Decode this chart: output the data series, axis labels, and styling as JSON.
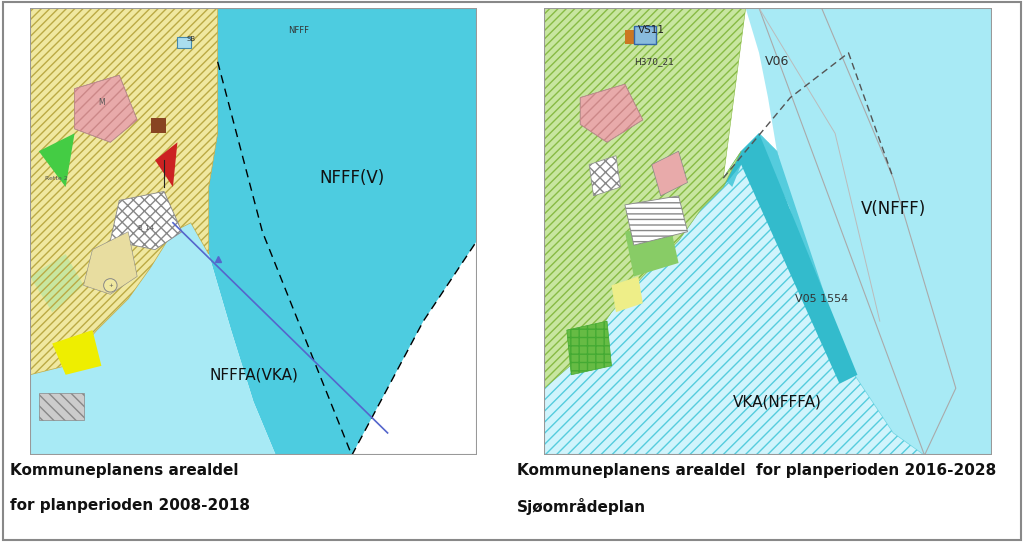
{
  "fig_width": 10.24,
  "fig_height": 5.42,
  "dpi": 100,
  "background_color": "#ffffff",
  "left_caption_line1": "Kommuneplanens arealdel",
  "left_caption_line2": "for planperioden 2008-2018",
  "right_caption_line1": "Kommuneplanens arealdel  for planperioden 2016-2028",
  "right_caption_line2": "Sjøområdeplan",
  "caption_fontsize": 11,
  "caption_fontweight": "bold",
  "color_sea_bright": "#4dcce0",
  "color_sea_light": "#a8eaf5",
  "color_sea_vlight": "#d0f4fc",
  "color_land_yellow": "#f0e8a0",
  "color_land_green_light": "#c8e6a0",
  "color_land_green": "#b0d888",
  "color_pink_land": "#ddb0a0",
  "color_pink": "#e8aaaa",
  "color_green_bright": "#44cc44",
  "color_green_dark": "#228822",
  "color_red": "#cc2222",
  "color_yellow": "#eeee00",
  "color_gray_hatch": "#aaaaaa",
  "color_blue_line": "#5566cc",
  "color_brown": "#884422",
  "color_orange": "#cc7722",
  "color_blue_box": "#88bbdd",
  "color_cyan_channel": "#55ccdd"
}
